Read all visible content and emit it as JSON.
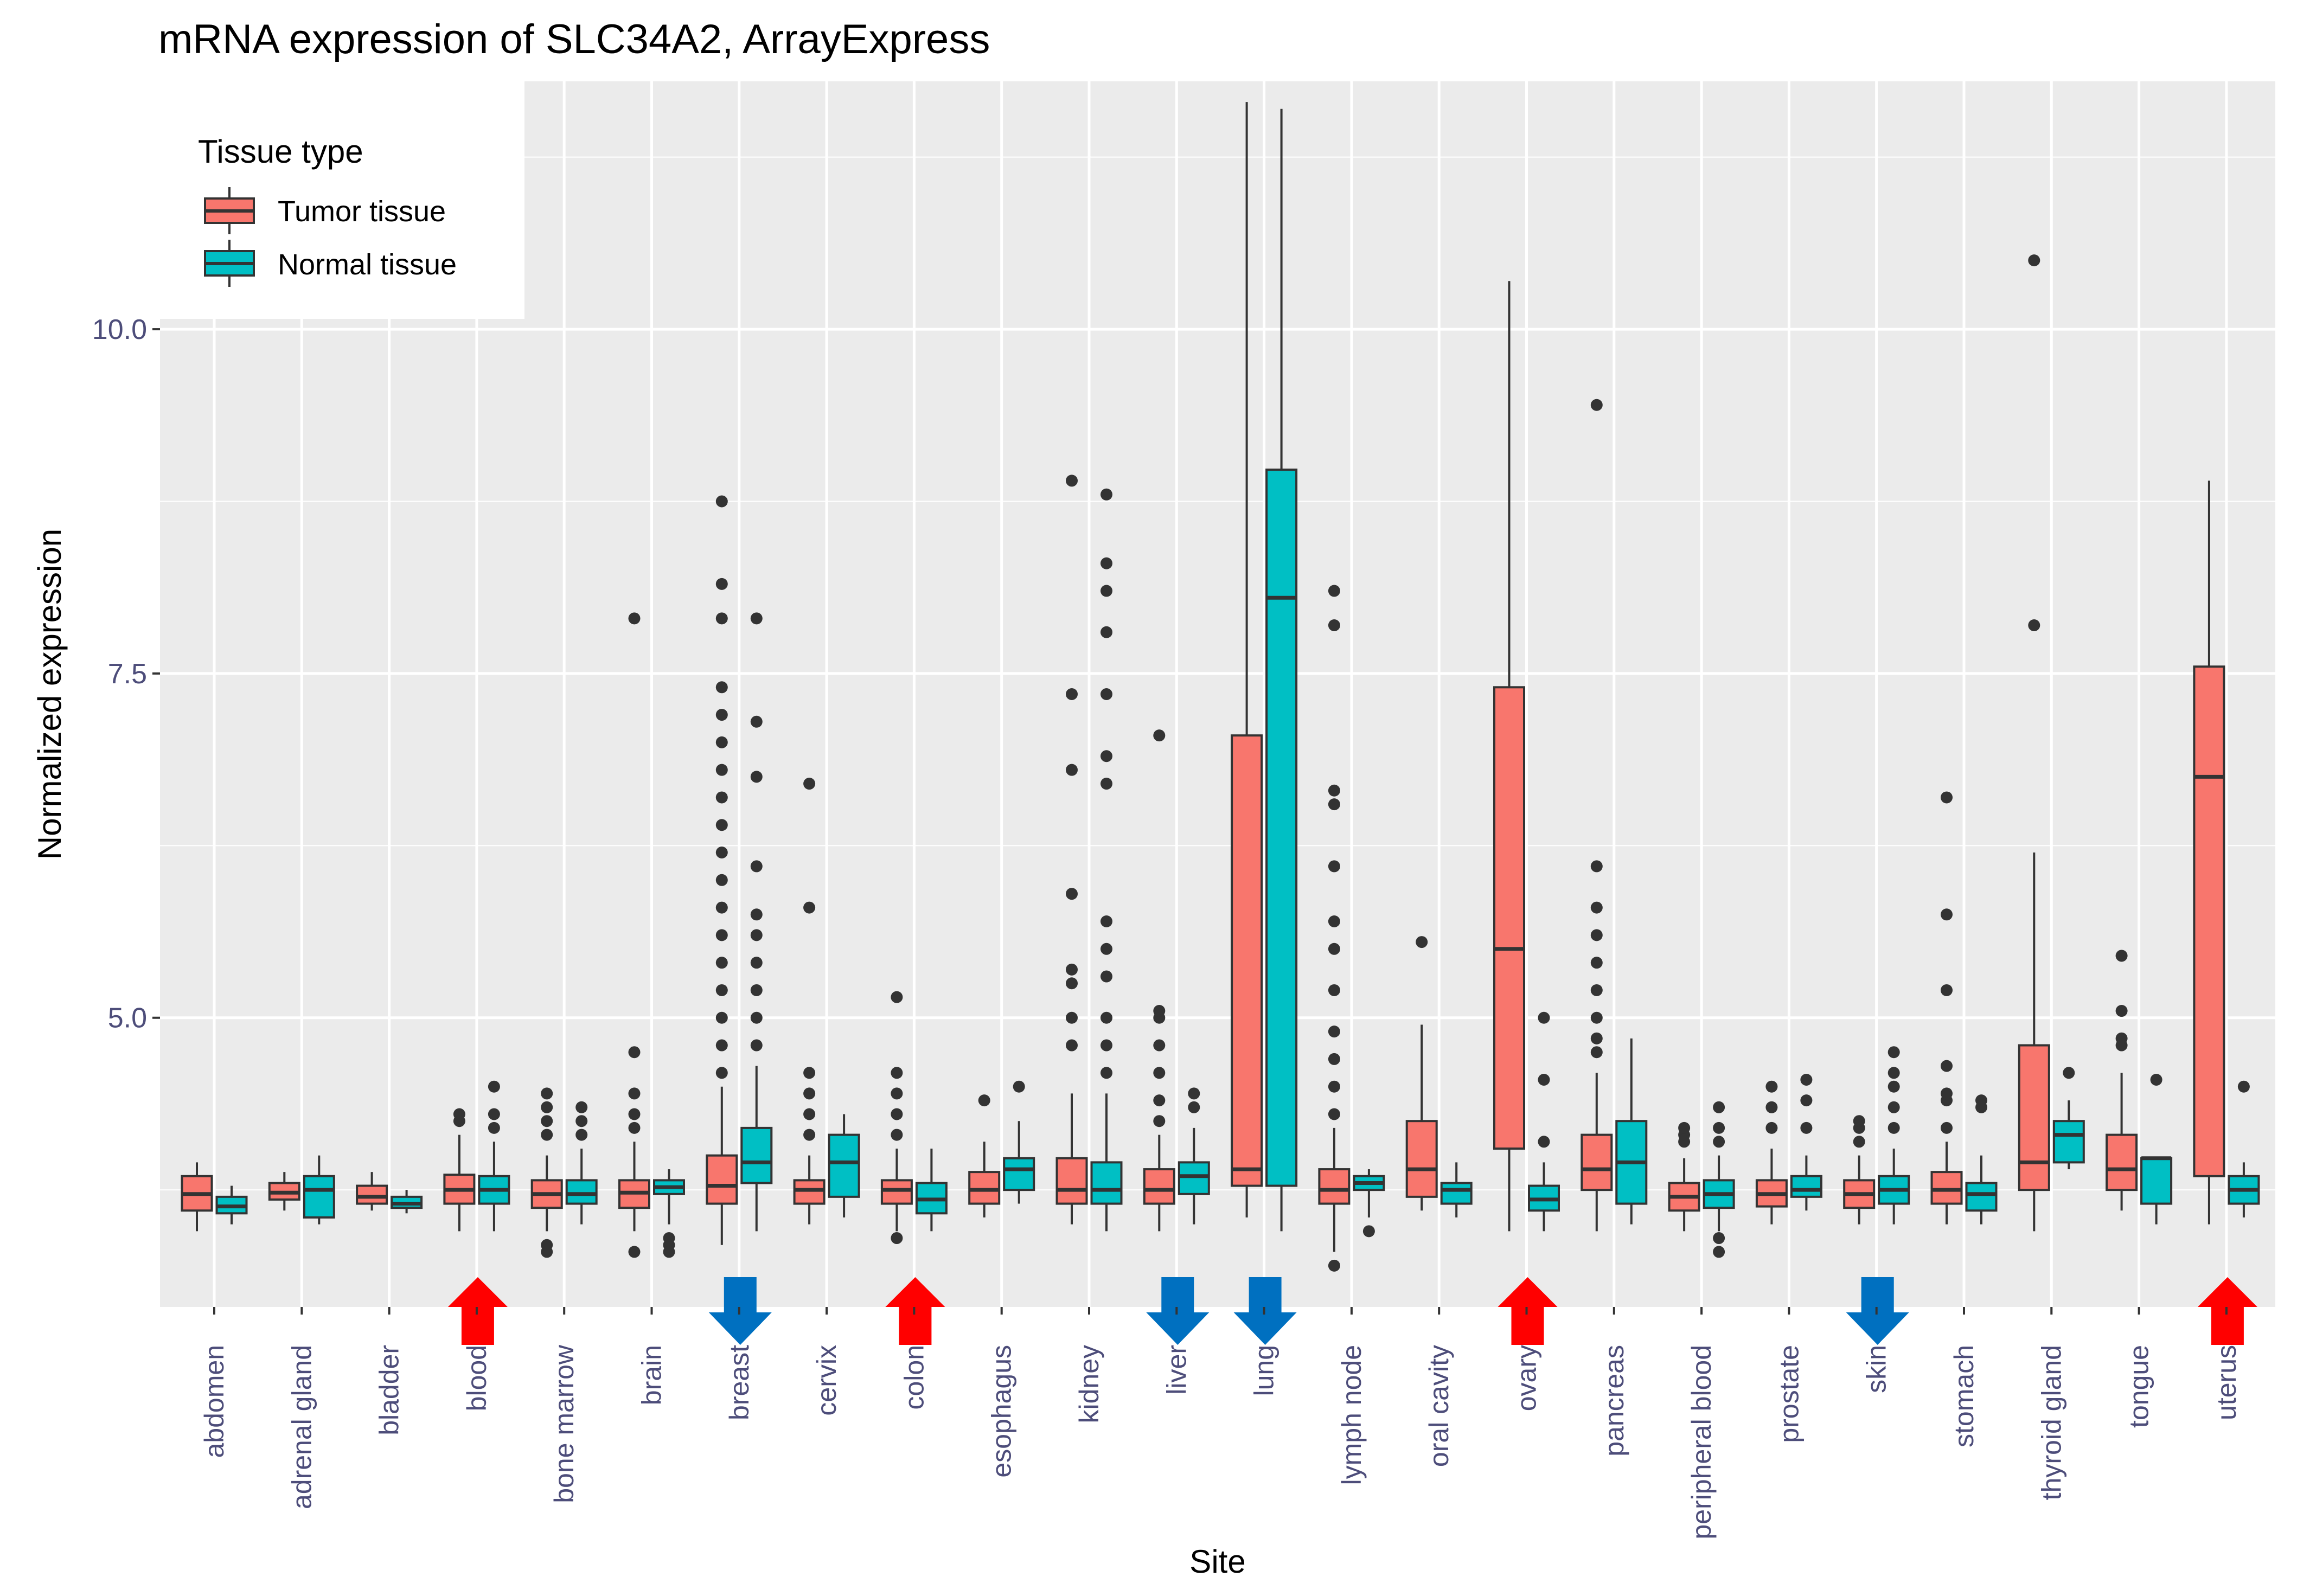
{
  "chart_data": {
    "type": "boxplot",
    "title": "mRNA expression of SLC34A2, ArrayExpress",
    "xlabel": "Site",
    "ylabel": "Normalized expression",
    "ylim": [
      2.9,
      11.8
    ],
    "yticks": [
      5.0,
      7.5,
      10.0
    ],
    "ytick_labels": [
      "5.0",
      "7.5",
      "10.0"
    ],
    "grid": true,
    "legend": {
      "title": "Tissue type",
      "position": "top-left",
      "entries": [
        {
          "key": "tumor",
          "label": "Tumor tissue",
          "color": "#F8766D"
        },
        {
          "key": "normal",
          "label": "Normal tissue",
          "color": "#00BFC4"
        }
      ]
    },
    "colors": {
      "tumor": "#F8766D",
      "normal": "#00BFC4",
      "panel": "#EBEBEB",
      "grid": "#FFFFFF",
      "arrow_up": "#FF0000",
      "arrow_down": "#0070C0",
      "outline": "#333333"
    },
    "categories": [
      "abdomen",
      "adrenal gland",
      "bladder",
      "blood",
      "bone marrow",
      "brain",
      "breast",
      "cervix",
      "colon",
      "esophagus",
      "kidney",
      "liver",
      "lung",
      "lymph node",
      "oral cavity",
      "ovary",
      "pancreas",
      "peripheral blood",
      "prostate",
      "skin",
      "stomach",
      "thyroid gland",
      "tongue",
      "uterus"
    ],
    "series": [
      {
        "name": "Tumor tissue",
        "key": "tumor",
        "boxes": [
          {
            "min": 3.45,
            "q1": 3.6,
            "median": 3.72,
            "q3": 3.85,
            "max": 3.95,
            "outliers": []
          },
          {
            "min": 3.6,
            "q1": 3.68,
            "median": 3.73,
            "q3": 3.8,
            "max": 3.88,
            "outliers": []
          },
          {
            "min": 3.6,
            "q1": 3.65,
            "median": 3.7,
            "q3": 3.78,
            "max": 3.88,
            "outliers": []
          },
          {
            "min": 3.45,
            "q1": 3.65,
            "median": 3.75,
            "q3": 3.86,
            "max": 4.15,
            "outliers": [
              4.25,
              4.3
            ]
          },
          {
            "min": 3.45,
            "q1": 3.62,
            "median": 3.72,
            "q3": 3.82,
            "max": 4.0,
            "outliers": [
              4.15,
              4.25,
              4.35,
              4.45,
              3.3,
              3.35
            ]
          },
          {
            "min": 3.45,
            "q1": 3.62,
            "median": 3.73,
            "q3": 3.82,
            "max": 4.1,
            "outliers": [
              4.2,
              4.3,
              4.45,
              4.75,
              7.9,
              3.3
            ]
          },
          {
            "min": 3.35,
            "q1": 3.65,
            "median": 3.78,
            "q3": 4.0,
            "max": 4.5,
            "outliers": [
              4.6,
              4.8,
              5.0,
              5.2,
              5.4,
              5.6,
              5.8,
              6.0,
              6.2,
              6.4,
              6.6,
              6.8,
              7.0,
              7.2,
              7.4,
              7.9,
              8.15,
              8.75
            ]
          },
          {
            "min": 3.5,
            "q1": 3.65,
            "median": 3.75,
            "q3": 3.82,
            "max": 4.0,
            "outliers": [
              4.15,
              4.3,
              4.45,
              4.6,
              5.8,
              6.7
            ]
          },
          {
            "min": 3.45,
            "q1": 3.65,
            "median": 3.75,
            "q3": 3.82,
            "max": 4.05,
            "outliers": [
              4.15,
              4.3,
              4.45,
              4.6,
              5.15,
              3.4
            ]
          },
          {
            "min": 3.55,
            "q1": 3.65,
            "median": 3.75,
            "q3": 3.88,
            "max": 4.1,
            "outliers": [
              4.4
            ]
          },
          {
            "min": 3.5,
            "q1": 3.65,
            "median": 3.75,
            "q3": 3.98,
            "max": 4.45,
            "outliers": [
              4.8,
              5.0,
              5.25,
              5.35,
              5.9,
              6.8,
              7.35,
              8.9
            ]
          },
          {
            "min": 3.45,
            "q1": 3.65,
            "median": 3.75,
            "q3": 3.9,
            "max": 4.15,
            "outliers": [
              4.25,
              4.4,
              4.6,
              4.8,
              5.0,
              5.05,
              7.05
            ]
          },
          {
            "min": 3.55,
            "q1": 3.78,
            "median": 3.9,
            "q3": 7.05,
            "max": 11.65,
            "outliers": []
          },
          {
            "min": 3.3,
            "q1": 3.65,
            "median": 3.75,
            "q3": 3.9,
            "max": 4.2,
            "outliers": [
              4.3,
              4.5,
              4.7,
              4.9,
              5.2,
              5.5,
              5.7,
              6.1,
              6.55,
              6.65,
              7.85,
              8.1,
              3.2
            ]
          },
          {
            "min": 3.6,
            "q1": 3.7,
            "median": 3.9,
            "q3": 4.25,
            "max": 4.95,
            "outliers": [
              5.55
            ]
          },
          {
            "min": 3.45,
            "q1": 4.05,
            "median": 5.5,
            "q3": 7.4,
            "max": 10.35,
            "outliers": []
          },
          {
            "min": 3.45,
            "q1": 3.75,
            "median": 3.9,
            "q3": 4.15,
            "max": 4.6,
            "outliers": [
              4.75,
              4.85,
              5.0,
              5.2,
              5.4,
              5.6,
              5.8,
              6.1,
              9.45
            ]
          },
          {
            "min": 3.45,
            "q1": 3.6,
            "median": 3.7,
            "q3": 3.8,
            "max": 3.98,
            "outliers": [
              4.1,
              4.15,
              4.2
            ]
          },
          {
            "min": 3.5,
            "q1": 3.63,
            "median": 3.72,
            "q3": 3.82,
            "max": 4.05,
            "outliers": [
              4.2,
              4.35,
              4.5
            ]
          },
          {
            "min": 3.5,
            "q1": 3.62,
            "median": 3.72,
            "q3": 3.82,
            "max": 4.0,
            "outliers": [
              4.1,
              4.2,
              4.25
            ]
          },
          {
            "min": 3.5,
            "q1": 3.65,
            "median": 3.75,
            "q3": 3.88,
            "max": 4.1,
            "outliers": [
              4.2,
              4.4,
              4.45,
              4.65,
              5.2,
              5.75,
              6.6
            ]
          },
          {
            "min": 3.45,
            "q1": 3.75,
            "median": 3.95,
            "q3": 4.8,
            "max": 6.2,
            "outliers": [
              7.85,
              10.5
            ]
          },
          {
            "min": 3.6,
            "q1": 3.75,
            "median": 3.9,
            "q3": 4.15,
            "max": 4.6,
            "outliers": [
              4.8,
              4.85,
              5.05,
              5.45
            ]
          },
          {
            "min": 3.5,
            "q1": 3.85,
            "median": 6.75,
            "q3": 7.55,
            "max": 8.9,
            "outliers": []
          }
        ]
      },
      {
        "name": "Normal tissue",
        "key": "normal",
        "boxes": [
          {
            "min": 3.5,
            "q1": 3.58,
            "median": 3.63,
            "q3": 3.7,
            "max": 3.78,
            "outliers": []
          },
          {
            "min": 3.5,
            "q1": 3.55,
            "median": 3.75,
            "q3": 3.85,
            "max": 4.0,
            "outliers": []
          },
          {
            "min": 3.58,
            "q1": 3.62,
            "median": 3.65,
            "q3": 3.7,
            "max": 3.75,
            "outliers": []
          },
          {
            "min": 3.45,
            "q1": 3.65,
            "median": 3.75,
            "q3": 3.85,
            "max": 4.1,
            "outliers": [
              4.2,
              4.3,
              4.5
            ]
          },
          {
            "min": 3.5,
            "q1": 3.65,
            "median": 3.72,
            "q3": 3.82,
            "max": 4.05,
            "outliers": [
              4.15,
              4.25,
              4.35
            ]
          },
          {
            "min": 3.5,
            "q1": 3.72,
            "median": 3.77,
            "q3": 3.82,
            "max": 3.9,
            "outliers": [
              3.4,
              3.35,
              3.3
            ]
          },
          {
            "min": 3.45,
            "q1": 3.8,
            "median": 3.95,
            "q3": 4.2,
            "max": 4.65,
            "outliers": [
              4.8,
              5.0,
              5.2,
              5.4,
              5.6,
              5.75,
              6.1,
              6.75,
              7.15,
              7.9
            ]
          },
          {
            "min": 3.55,
            "q1": 3.7,
            "median": 3.95,
            "q3": 4.15,
            "max": 4.3,
            "outliers": []
          },
          {
            "min": 3.45,
            "q1": 3.58,
            "median": 3.68,
            "q3": 3.8,
            "max": 4.05,
            "outliers": []
          },
          {
            "min": 3.65,
            "q1": 3.75,
            "median": 3.9,
            "q3": 3.98,
            "max": 4.25,
            "outliers": [
              4.5
            ]
          },
          {
            "min": 3.45,
            "q1": 3.65,
            "median": 3.75,
            "q3": 3.95,
            "max": 4.45,
            "outliers": [
              4.6,
              4.8,
              5.0,
              5.3,
              5.5,
              5.7,
              6.7,
              6.9,
              7.35,
              7.8,
              8.1,
              8.3,
              8.8
            ]
          },
          {
            "min": 3.5,
            "q1": 3.72,
            "median": 3.85,
            "q3": 3.95,
            "max": 4.2,
            "outliers": [
              4.35,
              4.45
            ]
          },
          {
            "min": 3.45,
            "q1": 3.78,
            "median": 8.05,
            "q3": 8.98,
            "max": 11.6,
            "outliers": []
          },
          {
            "min": 3.55,
            "q1": 3.75,
            "median": 3.8,
            "q3": 3.85,
            "max": 3.9,
            "outliers": [
              3.45
            ]
          },
          {
            "min": 3.55,
            "q1": 3.65,
            "median": 3.75,
            "q3": 3.8,
            "max": 3.95,
            "outliers": []
          },
          {
            "min": 3.45,
            "q1": 3.6,
            "median": 3.68,
            "q3": 3.78,
            "max": 3.95,
            "outliers": [
              4.1,
              4.55,
              5.0
            ]
          },
          {
            "min": 3.5,
            "q1": 3.65,
            "median": 3.95,
            "q3": 4.25,
            "max": 4.85,
            "outliers": []
          },
          {
            "min": 3.45,
            "q1": 3.62,
            "median": 3.72,
            "q3": 3.82,
            "max": 4.0,
            "outliers": [
              4.1,
              4.2,
              4.35,
              3.4,
              3.3
            ]
          },
          {
            "min": 3.6,
            "q1": 3.7,
            "median": 3.75,
            "q3": 3.85,
            "max": 4.0,
            "outliers": [
              4.2,
              4.4,
              4.55
            ]
          },
          {
            "min": 3.5,
            "q1": 3.65,
            "median": 3.75,
            "q3": 3.85,
            "max": 4.05,
            "outliers": [
              4.2,
              4.35,
              4.5,
              4.6,
              4.75
            ]
          },
          {
            "min": 3.5,
            "q1": 3.6,
            "median": 3.72,
            "q3": 3.8,
            "max": 4.0,
            "outliers": [
              4.35,
              4.4
            ]
          },
          {
            "min": 3.9,
            "q1": 3.95,
            "median": 4.15,
            "q3": 4.25,
            "max": 4.4,
            "outliers": [
              4.6
            ]
          },
          {
            "min": 3.5,
            "q1": 3.65,
            "median": 3.98,
            "q3": 3.98,
            "max": 3.98,
            "outliers": [
              4.55
            ]
          },
          {
            "min": 3.55,
            "q1": 3.65,
            "median": 3.75,
            "q3": 3.85,
            "max": 3.95,
            "outliers": [
              4.5
            ]
          }
        ]
      }
    ],
    "annotations": [
      {
        "site": "blood",
        "type": "arrow-up",
        "color": "#FF0000"
      },
      {
        "site": "breast",
        "type": "arrow-down",
        "color": "#0070C0"
      },
      {
        "site": "colon",
        "type": "arrow-up",
        "color": "#FF0000"
      },
      {
        "site": "liver",
        "type": "arrow-down",
        "color": "#0070C0"
      },
      {
        "site": "lung",
        "type": "arrow-down",
        "color": "#0070C0"
      },
      {
        "site": "ovary",
        "type": "arrow-up",
        "color": "#FF0000"
      },
      {
        "site": "skin",
        "type": "arrow-down",
        "color": "#0070C0"
      },
      {
        "site": "uterus",
        "type": "arrow-up",
        "color": "#FF0000"
      }
    ]
  }
}
